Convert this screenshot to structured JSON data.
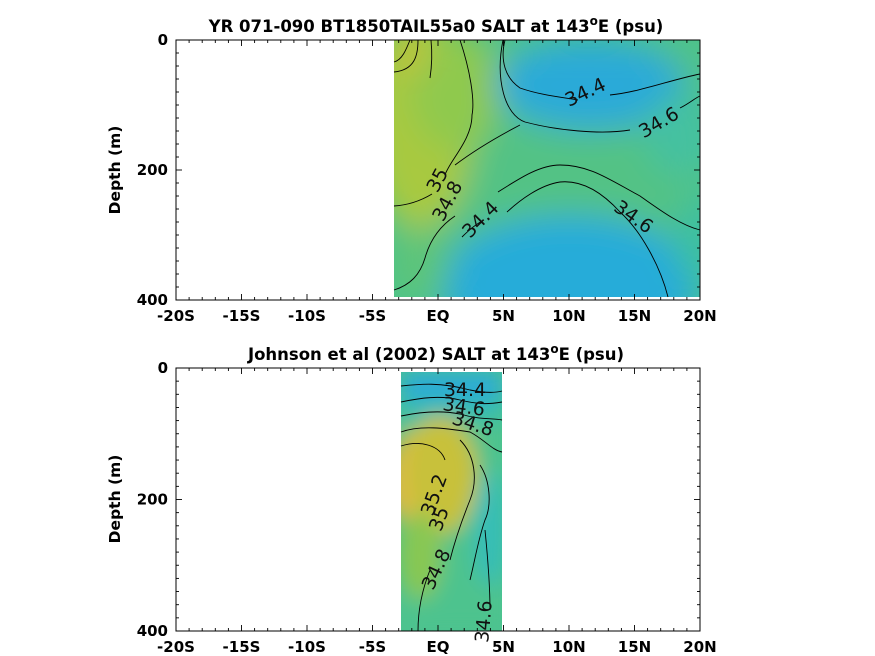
{
  "chart_data": [
    {
      "type": "heatmap",
      "title": "YR 071-090 BT1850TAIL55a0 SALT at 143",
      "title_superscript": "o",
      "title_suffix": "E (psu)",
      "ylabel": "Depth (m)",
      "xlabel": "",
      "xlim": [
        -20,
        20
      ],
      "ylim": [
        0,
        400
      ],
      "y_reversed": true,
      "xticks": [
        -20,
        -15,
        -10,
        -5,
        0,
        5,
        10,
        15,
        20
      ],
      "xtick_labels": [
        "-20S",
        "-15S",
        "-10S",
        "-5S",
        "EQ",
        "5N",
        "10N",
        "15N",
        "20N"
      ],
      "yticks": [
        0,
        200,
        400
      ],
      "ytick_labels": [
        "0",
        "200",
        "400"
      ],
      "data_extent_x": [
        -3,
        20
      ],
      "data_extent_y": [
        0,
        395
      ],
      "colormap": [
        "#2ea7e0",
        "#23b8c4",
        "#3cc0a0",
        "#6fc770",
        "#a9c93e",
        "#dcbd35",
        "#f5b844"
      ],
      "value_range": [
        34.2,
        35.4
      ],
      "field_note_samples": [
        {
          "lat": -2,
          "depth": 150,
          "salt": 35.05
        },
        {
          "lat": 10,
          "depth": 40,
          "salt": 34.35
        },
        {
          "lat": 8,
          "depth": 320,
          "salt": 34.3
        }
      ],
      "contour_levels": [
        34.4,
        34.6,
        34.8,
        35
      ],
      "contour_label_texts": [
        "34.4",
        "34.6",
        "35",
        "34.8",
        "34.4",
        "34.6"
      ]
    },
    {
      "type": "heatmap",
      "title": "Johnson et al (2002) SALT at 143",
      "title_superscript": "o",
      "title_suffix": "E (psu)",
      "ylabel": "Depth (m)",
      "xlabel": "",
      "xlim": [
        -20,
        20
      ],
      "ylim": [
        0,
        400
      ],
      "y_reversed": true,
      "xticks": [
        -20,
        -15,
        -10,
        -5,
        0,
        5,
        10,
        15,
        20
      ],
      "xtick_labels": [
        "-20S",
        "-15S",
        "-10S",
        "-5S",
        "EQ",
        "5N",
        "10N",
        "15N",
        "20N"
      ],
      "yticks": [
        0,
        200,
        400
      ],
      "ytick_labels": [
        "0",
        "200",
        "400"
      ],
      "data_extent_x": [
        -2.6,
        5
      ],
      "data_extent_y": [
        5,
        400
      ],
      "colormap": [
        "#2ea7e0",
        "#23b8c4",
        "#3cc0a0",
        "#6fc770",
        "#a9c93e",
        "#dcbd35",
        "#f5b844"
      ],
      "value_range": [
        34.2,
        35.4
      ],
      "contour_levels": [
        34.4,
        34.6,
        34.8,
        35,
        35.2
      ],
      "contour_label_texts": [
        "34.4",
        "34.6",
        "34.8",
        "35.2",
        "35",
        "34.8",
        "34.6"
      ]
    }
  ]
}
